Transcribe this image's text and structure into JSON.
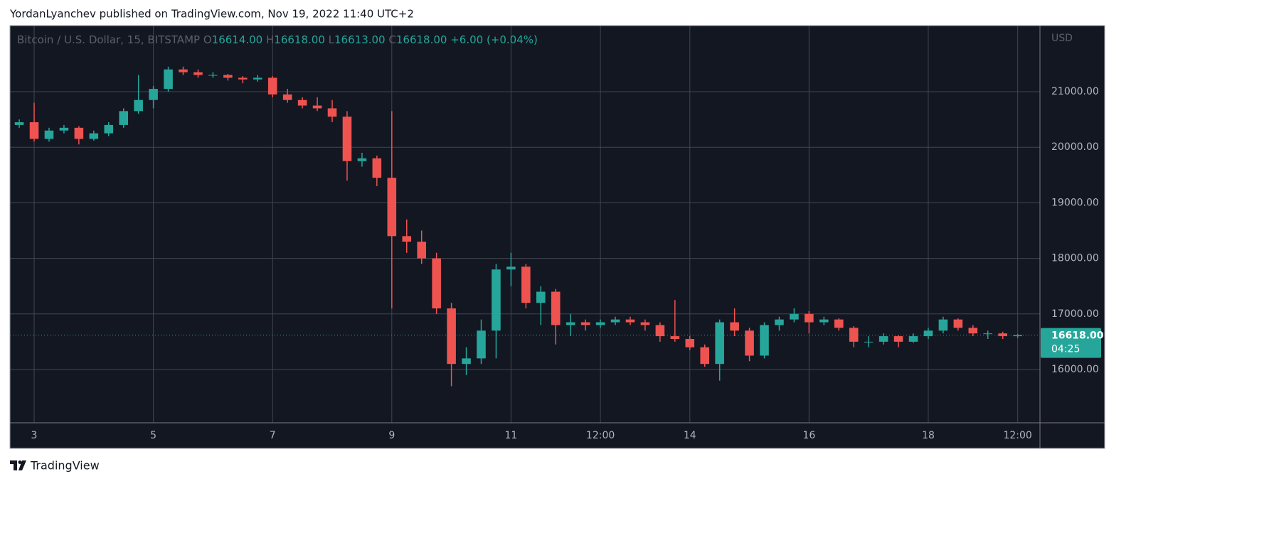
{
  "header": {
    "text": "YordanLyanchev published on TradingView.com, Nov 19, 2022 11:40 UTC+2"
  },
  "footer": {
    "brand": "TradingView"
  },
  "chart_data": {
    "type": "candlestick",
    "symbol": "Bitcoin / U.S. Dollar, 15, BITSTAMP",
    "legend": {
      "o_label": "O",
      "open": {
        "value": 16614,
        "label": "16614.00"
      },
      "h_label": "H",
      "high": {
        "value": 16618,
        "label": "16618.00"
      },
      "l_label": "L",
      "low": {
        "value": 16613,
        "label": "16613.00"
      },
      "c_label": "C",
      "close": {
        "value": 16618,
        "label": "16618.00"
      },
      "change": "+6.00 (+0.04%)"
    },
    "currency": "USD",
    "last_price": {
      "value": 16618,
      "label": "16618.00"
    },
    "countdown": "04:25",
    "up_color": "#26a69a",
    "down_color": "#ef5350",
    "grid": true,
    "xlim": [
      2.594,
      19.874
    ],
    "xticks": [
      3,
      5,
      7,
      9,
      11,
      {
        "value": 12.5,
        "label": "12:00"
      },
      14,
      16,
      18,
      {
        "value": 19.5,
        "label": "12:00"
      }
    ],
    "ylim": [
      15041,
      22189
    ],
    "yticks": [
      {
        "value": 16000,
        "label": "16000.00"
      },
      {
        "value": 17000,
        "label": "17000.00"
      },
      {
        "value": 18000,
        "label": "18000.00"
      },
      {
        "value": 19000,
        "label": "19000.00"
      },
      {
        "value": 20000,
        "label": "20000.00"
      },
      {
        "value": 21000,
        "label": "21000.00"
      }
    ],
    "x": [
      2.75,
      3,
      3.25,
      3.5,
      3.75,
      4,
      4.25,
      4.5,
      4.75,
      5,
      5.25,
      5.5,
      5.75,
      6,
      6.25,
      6.5,
      6.75,
      7,
      7.25,
      7.5,
      7.75,
      8,
      8.25,
      8.5,
      8.75,
      9,
      9.25,
      9.5,
      9.75,
      10,
      10.25,
      10.5,
      10.75,
      11,
      11.25,
      11.5,
      11.75,
      12,
      12.25,
      12.5,
      12.75,
      13,
      13.25,
      13.5,
      13.75,
      14,
      14.25,
      14.5,
      14.75,
      15,
      15.25,
      15.5,
      15.75,
      16,
      16.25,
      16.5,
      16.75,
      17,
      17.25,
      17.5,
      17.75,
      18,
      18.25,
      18.5,
      18.75,
      19,
      19.25,
      19.5
    ],
    "open": [
      20400,
      20450,
      20150,
      20300,
      20350,
      20150,
      20250,
      20400,
      20650,
      20850,
      21050,
      21400,
      21350,
      21300,
      21300,
      21250,
      21220,
      21250,
      20950,
      20850,
      20750,
      20700,
      20550,
      19750,
      19800,
      19450,
      18400,
      18300,
      18000,
      17100,
      16100,
      16200,
      16700,
      17800,
      17850,
      17200,
      17400,
      16800,
      16850,
      16800,
      16850,
      16900,
      16850,
      16800,
      16600,
      16550,
      16400,
      16100,
      16850,
      16700,
      16250,
      16800,
      16900,
      17000,
      16850,
      16900,
      16750,
      16500,
      16500,
      16600,
      16500,
      16600,
      16700,
      16900,
      16750,
      16650,
      16650,
      16600
    ],
    "high": [
      20500,
      20800,
      20350,
      20400,
      20380,
      20300,
      20450,
      20700,
      21300,
      21100,
      21450,
      21450,
      21400,
      21350,
      21320,
      21280,
      21300,
      21280,
      21050,
      20900,
      20900,
      20850,
      20650,
      19900,
      19850,
      20650,
      18700,
      18500,
      18100,
      17200,
      16400,
      16900,
      17900,
      18100,
      17900,
      17500,
      17450,
      17000,
      16900,
      16900,
      16950,
      16950,
      16900,
      16850,
      17250,
      16600,
      16450,
      16900,
      17100,
      16750,
      16850,
      16950,
      17100,
      17050,
      16950,
      16920,
      16780,
      16600,
      16650,
      16620,
      16650,
      16750,
      16950,
      16920,
      16800,
      16700,
      16680,
      16640
    ],
    "low": [
      20350,
      20100,
      20100,
      20250,
      20050,
      20120,
      20200,
      20350,
      20600,
      20700,
      21000,
      21300,
      21250,
      21250,
      21200,
      21150,
      21180,
      20900,
      20800,
      20700,
      20650,
      20450,
      19400,
      19650,
      19300,
      17100,
      18100,
      17900,
      17000,
      15700,
      15900,
      16100,
      16200,
      17500,
      17100,
      16800,
      16450,
      16600,
      16700,
      16750,
      16800,
      16800,
      16700,
      16500,
      16500,
      16350,
      16050,
      15800,
      16600,
      16150,
      16200,
      16700,
      16850,
      16650,
      16800,
      16700,
      16400,
      16400,
      16450,
      16400,
      16480,
      16550,
      16650,
      16700,
      16600,
      16550,
      16550,
      16570
    ],
    "close": [
      20450,
      20150,
      20300,
      20350,
      20150,
      20250,
      20400,
      20650,
      20850,
      21050,
      21400,
      21350,
      21300,
      21300,
      21250,
      21220,
      21250,
      20950,
      20850,
      20750,
      20700,
      20550,
      19750,
      19800,
      19450,
      18400,
      18300,
      18000,
      17100,
      16100,
      16200,
      16700,
      17800,
      17850,
      17200,
      17400,
      16800,
      16850,
      16800,
      16850,
      16900,
      16850,
      16800,
      16600,
      16550,
      16400,
      16100,
      16850,
      16700,
      16250,
      16800,
      16900,
      17000,
      16850,
      16900,
      16750,
      16500,
      16500,
      16600,
      16500,
      16600,
      16700,
      16900,
      16750,
      16650,
      16650,
      16600,
      16618
    ]
  }
}
